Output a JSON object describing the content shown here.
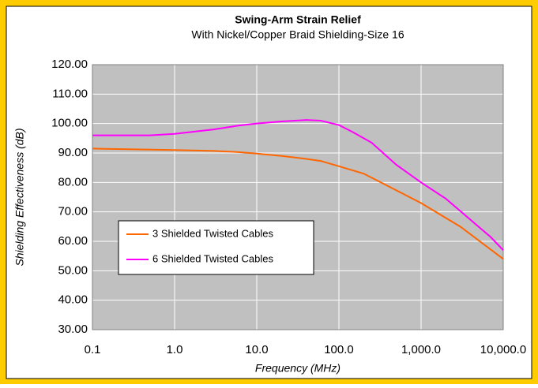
{
  "chart_data": {
    "type": "line",
    "title": "Swing-Arm Strain Relief",
    "subtitle": "With Nickel/Copper Braid Shielding-Size 16",
    "x_label": "Frequency (MHz)",
    "y_label": "Shielding Effectiveness (dB)",
    "x_scale": "log",
    "grid": true,
    "xlim": [
      0.1,
      10000
    ],
    "xticks": [
      0.1,
      {
        "value": 1,
        "label": "1.0"
      },
      {
        "value": 10,
        "label": "10.0"
      },
      {
        "value": 100,
        "label": "100.0"
      },
      {
        "value": 1000,
        "label": "1,000.0"
      },
      {
        "value": 10000,
        "label": "10,000.0"
      }
    ],
    "ylim": [
      30,
      120
    ],
    "yticks": [
      {
        "value": 30,
        "label": "30.00"
      },
      {
        "value": 40,
        "label": "40.00"
      },
      {
        "value": 50,
        "label": "50.00"
      },
      {
        "value": 60,
        "label": "60.00"
      },
      {
        "value": 70,
        "label": "70.00"
      },
      {
        "value": 80,
        "label": "80.00"
      },
      {
        "value": 90,
        "label": "90.00"
      },
      {
        "value": 100,
        "label": "100.00"
      },
      {
        "value": 110,
        "label": "110.00"
      },
      {
        "value": 120,
        "label": "120.00"
      }
    ],
    "series": [
      {
        "name": "3 Shielded Twisted Cables",
        "color": "#ff6600",
        "x": [
          0.1,
          1,
          3,
          6,
          10,
          20,
          40,
          60,
          100,
          200,
          300,
          1000,
          3000,
          10000
        ],
        "values": [
          91.5,
          91,
          90.7,
          90.3,
          89.8,
          89,
          88,
          87.3,
          85.5,
          83,
          80.5,
          73,
          65,
          54
        ]
      },
      {
        "name": "6 Shielded Twisted Cables",
        "color": "#ff00ff",
        "x": [
          0.1,
          0.5,
          1,
          3,
          6,
          10,
          20,
          40,
          60,
          100,
          150,
          250,
          500,
          1000,
          2000,
          5000,
          7000,
          10000
        ],
        "values": [
          96,
          96,
          96.5,
          98,
          99.3,
          100,
          100.7,
          101.2,
          101,
          99.5,
          97,
          93.5,
          86,
          80,
          74.5,
          65,
          61.5,
          57
        ]
      }
    ]
  }
}
